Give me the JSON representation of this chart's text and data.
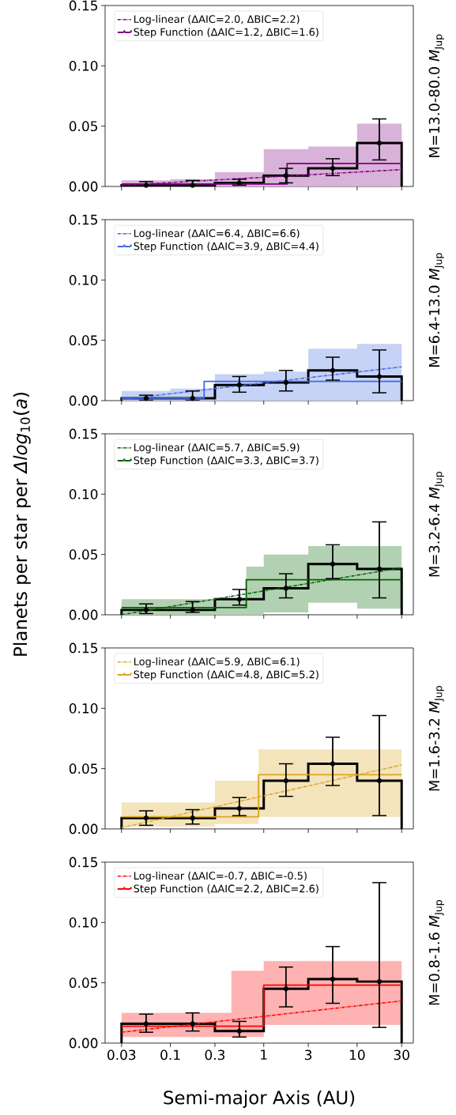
{
  "chart_data": [
    {
      "type": "line",
      "y2label": "M=13.0-80.0 *M*$_{Jup}$",
      "log": "x",
      "legend": "top left",
      "tick_labels": "y",
      "xlim": [
        0.02,
        40
      ],
      "xticks": [
        0.03,
        0.1,
        0.3,
        1,
        3,
        10,
        30
      ],
      "ylim": [
        0,
        0.15
      ],
      "yticks": [
        {
          "value": 0,
          "label": "0.00"
        },
        {
          "value": 0.05,
          "label": "0.05"
        },
        {
          "value": 0.1,
          "label": "0.10"
        },
        {
          "value": 0.15,
          "label": "0.15"
        }
      ],
      "series": [
        {
          "name": "Log-linear (ΔAIC=2.0, ΔBIC=2.2)",
          "line_style": "dashdot",
          "color": "#800080",
          "x": [
            0.03,
            30
          ],
          "values": [
            0.001,
            0.014
          ]
        },
        {
          "name": "Step Function (ΔAIC=1.2, ΔBIC=1.6)",
          "type": "step",
          "color": "#800080",
          "x": [
            0.03,
            0.1,
            0.3,
            1,
            1.78,
            3,
            10,
            30
          ],
          "values": [
            0.002,
            0.002,
            0.002,
            0.002,
            0.019,
            0.019,
            0.019,
            0.019
          ],
          "lower": [
            0,
            0,
            0,
            0,
            0,
            0,
            0,
            0
          ],
          "upper": [
            0.005,
            0.006,
            0.012,
            0.031,
            0.031,
            0.033,
            0.052,
            0.052
          ]
        },
        {
          "type": "histogram",
          "color": "#000000",
          "bins": [
            0.03,
            0.1,
            0.3,
            1,
            3,
            10,
            30
          ],
          "values": [
            0.001,
            0.001,
            0.003,
            0.009,
            0.015,
            0.036
          ]
        },
        {
          "type": "scatter",
          "marker": "circle",
          "color": "#000000",
          "x": [
            0.055,
            0.173,
            0.548,
            1.73,
            5.48,
            17.3
          ],
          "values": [
            0.001,
            0.001,
            0.003,
            0.009,
            0.015,
            0.036
          ],
          "errors": [
            [
              0,
              0.004
            ],
            [
              0,
              0.005
            ],
            [
              0.001,
              0.006
            ],
            [
              0.003,
              0.015
            ],
            [
              0.009,
              0.023
            ],
            [
              0.022,
              0.056
            ]
          ]
        }
      ]
    },
    {
      "type": "line",
      "y2label": "M=6.4-13.0 *M*$_{Jup}$",
      "log": "x",
      "legend": "top left",
      "tick_labels": "y",
      "xlim": [
        0.02,
        40
      ],
      "xticks": [
        0.03,
        0.1,
        0.3,
        1,
        3,
        10,
        30
      ],
      "ylim": [
        0,
        0.15
      ],
      "yticks": [
        {
          "value": 0,
          "label": "0.00"
        },
        {
          "value": 0.05,
          "label": "0.05"
        },
        {
          "value": 0.1,
          "label": "0.10"
        },
        {
          "value": 0.15,
          "label": "0.15"
        }
      ],
      "series": [
        {
          "name": "Log-linear (ΔAIC=6.4, ΔBIC=6.6)",
          "line_style": "dashdot",
          "color": "#4169e1",
          "x": [
            0.03,
            30
          ],
          "values": [
            0.001,
            0.028
          ]
        },
        {
          "name": "Step Function (ΔAIC=3.9, ΔBIC=4.4)",
          "type": "step",
          "color": "#4169e1",
          "x": [
            0.03,
            0.1,
            0.23,
            0.3,
            1,
            3,
            10,
            30
          ],
          "values": [
            0.002,
            0.002,
            0.016,
            0.016,
            0.016,
            0.016,
            0.016,
            0.016
          ],
          "lower": [
            0,
            0,
            0,
            0,
            0,
            0,
            0,
            0
          ],
          "upper": [
            0.008,
            0.01,
            0.01,
            0.022,
            0.024,
            0.043,
            0.047,
            0.047
          ]
        },
        {
          "type": "histogram",
          "color": "#000000",
          "bins": [
            0.03,
            0.1,
            0.3,
            1,
            3,
            10,
            30
          ],
          "values": [
            0.002,
            0.002,
            0.013,
            0.015,
            0.025,
            0.02
          ]
        },
        {
          "type": "scatter",
          "marker": "circle",
          "color": "#000000",
          "x": [
            0.055,
            0.173,
            0.548,
            1.73,
            5.48,
            17.3
          ],
          "values": [
            0.002,
            0.002,
            0.013,
            0.015,
            0.025,
            0.02
          ],
          "errors": [
            [
              0,
              0.0045
            ],
            [
              0,
              0.008
            ],
            [
              0.007,
              0.02
            ],
            [
              0.008,
              0.025
            ],
            [
              0.017,
              0.036
            ],
            [
              0.0065,
              0.042
            ]
          ]
        }
      ]
    },
    {
      "type": "line",
      "ylabel": "Planets per star per *Δlog*$_{10}$(*a*)",
      "y2label": "M=3.2-6.4 *M*$_{Jup}$",
      "log": "x",
      "legend": "top left",
      "tick_labels": "y",
      "xlim": [
        0.02,
        40
      ],
      "xticks": [
        0.03,
        0.1,
        0.3,
        1,
        3,
        10,
        30
      ],
      "ylim": [
        0,
        0.15
      ],
      "yticks": [
        {
          "value": 0,
          "label": "0.00"
        },
        {
          "value": 0.05,
          "label": "0.05"
        },
        {
          "value": 0.1,
          "label": "0.10"
        },
        {
          "value": 0.15,
          "label": "0.15"
        }
      ],
      "series": [
        {
          "name": "Log-linear (ΔAIC=5.7, ΔBIC=5.9)",
          "line_style": "dashdot",
          "color": "#006400",
          "x": [
            0.03,
            30
          ],
          "values": [
            0,
            0.039
          ]
        },
        {
          "name": "Step Function (ΔAIC=3.3, ΔBIC=3.7)",
          "type": "step",
          "color": "#006400",
          "x": [
            0.03,
            0.1,
            0.3,
            0.65,
            1,
            3,
            10,
            30
          ],
          "values": [
            0.006,
            0.006,
            0.006,
            0.029,
            0.029,
            0.029,
            0.029,
            0.029
          ],
          "lower": [
            0,
            0,
            0,
            0,
            0.002,
            0.01,
            0.005,
            0.005
          ],
          "upper": [
            0.013,
            0.013,
            0.013,
            0.04,
            0.05,
            0.057,
            0.057,
            0.057
          ]
        },
        {
          "type": "histogram",
          "color": "#000000",
          "bins": [
            0.03,
            0.1,
            0.3,
            1,
            3,
            10,
            30
          ],
          "values": [
            0.004,
            0.004,
            0.013,
            0.022,
            0.042,
            0.038
          ]
        },
        {
          "type": "scatter",
          "marker": "circle",
          "color": "#000000",
          "x": [
            0.055,
            0.173,
            0.548,
            1.73,
            5.48,
            17.3
          ],
          "values": [
            0.004,
            0.004,
            0.013,
            0.022,
            0.042,
            0.038
          ],
          "errors": [
            [
              0.001,
              0.009
            ],
            [
              0.002,
              0.011
            ],
            [
              0.008,
              0.021
            ],
            [
              0.014,
              0.034
            ],
            [
              0.03,
              0.058
            ],
            [
              0.014,
              0.077
            ]
          ]
        }
      ]
    },
    {
      "type": "line",
      "y2label": "M=1.6-3.2 *M*$_{Jup}$",
      "log": "x",
      "legend": "top left",
      "tick_labels": "y",
      "xlim": [
        0.02,
        40
      ],
      "xticks": [
        0.03,
        0.1,
        0.3,
        1,
        3,
        10,
        30
      ],
      "ylim": [
        0,
        0.15
      ],
      "yticks": [
        {
          "value": 0,
          "label": "0.00"
        },
        {
          "value": 0.05,
          "label": "0.05"
        },
        {
          "value": 0.1,
          "label": "0.10"
        },
        {
          "value": 0.15,
          "label": "0.15"
        }
      ],
      "series": [
        {
          "name": "Log-linear (ΔAIC=5.9, ΔBIC=6.1)",
          "line_style": "dashdot",
          "color": "#daa520",
          "x": [
            0.03,
            30
          ],
          "values": [
            0.001,
            0.053
          ]
        },
        {
          "name": "Step Function (ΔAIC=4.8, ΔBIC=5.2)",
          "type": "step",
          "color": "#daa520",
          "x": [
            0.03,
            0.1,
            0.3,
            0.88,
            1,
            3,
            10,
            30
          ],
          "values": [
            0.01,
            0.01,
            0.01,
            0.045,
            0.045,
            0.045,
            0.045,
            0.045
          ],
          "lower": [
            0.002,
            0.002,
            0.004,
            0.01,
            0.01,
            0.01,
            0.01,
            0.01
          ],
          "upper": [
            0.022,
            0.022,
            0.04,
            0.066,
            0.066,
            0.066,
            0.066,
            0.066
          ]
        },
        {
          "type": "histogram",
          "color": "#000000",
          "bins": [
            0.03,
            0.1,
            0.3,
            1,
            3,
            10,
            30
          ],
          "values": [
            0.009,
            0.009,
            0.017,
            0.04,
            0.054,
            0.04
          ]
        },
        {
          "type": "scatter",
          "marker": "circle",
          "color": "#000000",
          "x": [
            0.055,
            0.173,
            0.548,
            1.73,
            5.48,
            17.3
          ],
          "values": [
            0.009,
            0.009,
            0.017,
            0.04,
            0.054,
            0.04
          ],
          "errors": [
            [
              0.003,
              0.015
            ],
            [
              0.004,
              0.016
            ],
            [
              0.011,
              0.026
            ],
            [
              0.027,
              0.054
            ],
            [
              0.036,
              0.076
            ],
            [
              0.011,
              0.094
            ]
          ]
        }
      ]
    },
    {
      "type": "line",
      "xlabel": "Semi-major Axis (AU)",
      "y2label": "M=0.8-1.6 *M*$_{Jup}$",
      "log": "x",
      "legend": "top left",
      "xlim": [
        0.02,
        40
      ],
      "xticks": [
        0.03,
        0.1,
        0.3,
        1,
        3,
        10,
        30
      ],
      "ylim": [
        0,
        0.15
      ],
      "yticks": [
        {
          "value": 0,
          "label": "0.00"
        },
        {
          "value": 0.05,
          "label": "0.05"
        },
        {
          "value": 0.1,
          "label": "0.10"
        },
        {
          "value": 0.15,
          "label": "0.15"
        }
      ],
      "series": [
        {
          "name": "Log-linear (ΔAIC=-0.7, ΔBIC=-0.5)",
          "line_style": "dashdot",
          "color": "#ff0000",
          "x": [
            0.03,
            30
          ],
          "values": [
            0.009,
            0.035
          ]
        },
        {
          "name": "Step Function (ΔAIC=2.2, ΔBIC=2.6)",
          "type": "step",
          "color": "#ff0000",
          "x": [
            0.03,
            0.1,
            0.3,
            0.45,
            1,
            3,
            10,
            30
          ],
          "values": [
            0.014,
            0.014,
            0.014,
            0.014,
            0.048,
            0.048,
            0.048,
            0.048
          ],
          "lower": [
            0.005,
            0.005,
            0.005,
            0.005,
            0.015,
            0.015,
            0.015,
            0.015
          ],
          "upper": [
            0.025,
            0.025,
            0.025,
            0.06,
            0.068,
            0.068,
            0.068,
            0.068
          ]
        },
        {
          "type": "histogram",
          "color": "#000000",
          "bins": [
            0.03,
            0.1,
            0.3,
            1,
            3,
            10,
            30
          ],
          "values": [
            0.016,
            0.016,
            0.01,
            0.045,
            0.053,
            0.051
          ]
        },
        {
          "type": "scatter",
          "marker": "circle",
          "color": "#000000",
          "x": [
            0.055,
            0.173,
            0.548,
            1.73,
            5.48,
            17.3
          ],
          "values": [
            0.016,
            0.016,
            0.01,
            0.045,
            0.053,
            0.051
          ],
          "errors": [
            [
              0.009,
              0.024
            ],
            [
              0.01,
              0.025
            ],
            [
              0.005,
              0.018
            ],
            [
              0.03,
              0.063
            ],
            [
              0.033,
              0.08
            ],
            [
              0.013,
              0.133
            ]
          ]
        }
      ]
    }
  ]
}
